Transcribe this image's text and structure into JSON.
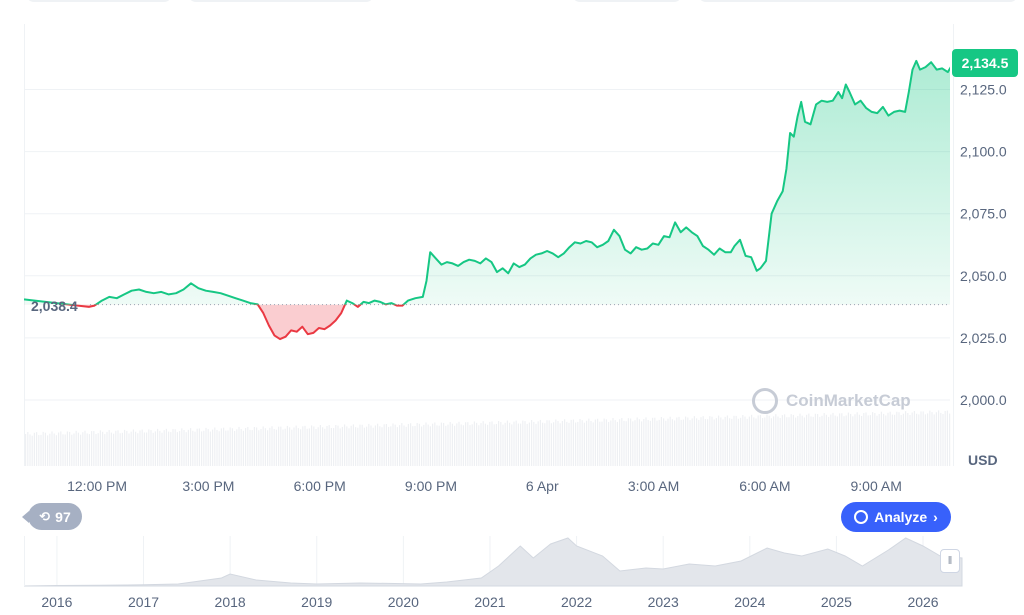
{
  "chart_data": {
    "type": "area",
    "title": "",
    "xlabel": "",
    "ylabel": "USD",
    "y_ticks": [
      2000.0,
      2025.0,
      2050.0,
      2075.0,
      2100.0,
      2125.0
    ],
    "y_tick_labels": [
      "2,000.0",
      "2,025.0",
      "2,050.0",
      "2,075.0",
      "2,100.0",
      "2,125.0"
    ],
    "ylim": [
      1974.0,
      2152.0
    ],
    "x_tick_labels": [
      "12:00 PM",
      "3:00 PM",
      "6:00 PM",
      "9:00 PM",
      "6 Apr",
      "3:00 AM",
      "6:00 AM",
      "9:00 AM"
    ],
    "x_ticks_hours": [
      1.97,
      4.97,
      7.97,
      10.97,
      13.97,
      16.97,
      19.97,
      22.97
    ],
    "xlim_hours": [
      0,
      25
    ],
    "open_price": 2038.4,
    "open_price_label": "2,038.4",
    "last_price": 2134.5,
    "last_price_label": "2,134.5",
    "series": [
      {
        "points": [
          [
            0.0,
            2040.5
          ],
          [
            1.75,
            2037.5
          ],
          [
            1.9,
            2038.0
          ],
          [
            2.1,
            2040.0
          ],
          [
            2.3,
            2041.5
          ],
          [
            2.5,
            2041.0
          ],
          [
            2.7,
            2042.5
          ],
          [
            2.9,
            2044.0
          ],
          [
            3.1,
            2044.5
          ],
          [
            3.3,
            2043.5
          ],
          [
            3.5,
            2043.0
          ],
          [
            3.7,
            2043.5
          ],
          [
            3.9,
            2042.5
          ],
          [
            4.1,
            2043.0
          ],
          [
            4.3,
            2044.5
          ],
          [
            4.5,
            2047.0
          ],
          [
            4.7,
            2045.0
          ],
          [
            4.9,
            2044.0
          ],
          [
            5.1,
            2043.5
          ],
          [
            5.3,
            2043.0
          ],
          [
            5.5,
            2042.0
          ],
          [
            5.7,
            2041.0
          ],
          [
            5.9,
            2040.0
          ],
          [
            6.1,
            2039.0
          ],
          [
            6.3,
            2038.5
          ],
          [
            6.45,
            2035.0
          ],
          [
            6.6,
            2030.0
          ],
          [
            6.75,
            2026.0
          ],
          [
            6.9,
            2024.5
          ],
          [
            7.05,
            2025.5
          ],
          [
            7.2,
            2028.0
          ],
          [
            7.35,
            2027.5
          ],
          [
            7.5,
            2029.5
          ],
          [
            7.65,
            2026.5
          ],
          [
            7.8,
            2027.0
          ],
          [
            7.95,
            2029.0
          ],
          [
            8.1,
            2028.5
          ],
          [
            8.25,
            2030.0
          ],
          [
            8.4,
            2032.0
          ],
          [
            8.55,
            2035.0
          ],
          [
            8.7,
            2040.0
          ],
          [
            8.85,
            2039.0
          ],
          [
            9.0,
            2037.5
          ],
          [
            9.15,
            2039.5
          ],
          [
            9.3,
            2039.0
          ],
          [
            9.45,
            2040.0
          ],
          [
            9.6,
            2039.5
          ],
          [
            9.75,
            2038.5
          ],
          [
            9.9,
            2039.0
          ],
          [
            10.05,
            2038.0
          ],
          [
            10.2,
            2038.0
          ],
          [
            10.35,
            2040.0
          ],
          [
            10.55,
            2041.0
          ],
          [
            10.75,
            2041.5
          ],
          [
            10.85,
            2048.0
          ],
          [
            10.95,
            2059.5
          ],
          [
            11.1,
            2057.0
          ],
          [
            11.25,
            2054.5
          ],
          [
            11.4,
            2055.5
          ],
          [
            11.55,
            2055.0
          ],
          [
            11.7,
            2054.0
          ],
          [
            11.85,
            2055.5
          ],
          [
            12.0,
            2056.5
          ],
          [
            12.15,
            2056.0
          ],
          [
            12.3,
            2055.0
          ],
          [
            12.45,
            2057.0
          ],
          [
            12.6,
            2055.5
          ],
          [
            12.75,
            2051.5
          ],
          [
            12.9,
            2053.0
          ],
          [
            13.05,
            2051.0
          ],
          [
            13.2,
            2055.0
          ],
          [
            13.35,
            2053.5
          ],
          [
            13.5,
            2054.5
          ],
          [
            13.65,
            2057.0
          ],
          [
            13.8,
            2058.5
          ],
          [
            13.95,
            2059.0
          ],
          [
            14.1,
            2060.0
          ],
          [
            14.25,
            2059.0
          ],
          [
            14.4,
            2057.5
          ],
          [
            14.55,
            2059.0
          ],
          [
            14.7,
            2061.5
          ],
          [
            14.85,
            2063.5
          ],
          [
            15.0,
            2063.0
          ],
          [
            15.15,
            2064.0
          ],
          [
            15.3,
            2063.5
          ],
          [
            15.45,
            2061.5
          ],
          [
            15.6,
            2062.5
          ],
          [
            15.75,
            2064.0
          ],
          [
            15.9,
            2068.5
          ],
          [
            16.05,
            2066.0
          ],
          [
            16.2,
            2060.5
          ],
          [
            16.35,
            2059.0
          ],
          [
            16.5,
            2061.5
          ],
          [
            16.65,
            2060.5
          ],
          [
            16.8,
            2061.0
          ],
          [
            16.95,
            2063.0
          ],
          [
            17.1,
            2062.5
          ],
          [
            17.25,
            2066.0
          ],
          [
            17.4,
            2065.5
          ],
          [
            17.55,
            2071.5
          ],
          [
            17.7,
            2067.5
          ],
          [
            17.85,
            2069.5
          ],
          [
            18.0,
            2067.5
          ],
          [
            18.15,
            2066.0
          ],
          [
            18.3,
            2062.0
          ],
          [
            18.45,
            2060.5
          ],
          [
            18.6,
            2058.5
          ],
          [
            18.75,
            2061.0
          ],
          [
            18.9,
            2059.5
          ],
          [
            19.05,
            2059.5
          ],
          [
            19.15,
            2062.0
          ],
          [
            19.3,
            2064.5
          ],
          [
            19.45,
            2058.0
          ],
          [
            19.6,
            2057.5
          ],
          [
            19.75,
            2052.0
          ],
          [
            19.85,
            2053.0
          ],
          [
            20.0,
            2056.0
          ],
          [
            20.15,
            2075.0
          ],
          [
            20.3,
            2080.0
          ],
          [
            20.45,
            2084.0
          ],
          [
            20.55,
            2093.0
          ],
          [
            20.65,
            2107.5
          ],
          [
            20.75,
            2106.0
          ],
          [
            20.85,
            2114.0
          ],
          [
            20.95,
            2120.0
          ],
          [
            21.05,
            2112.0
          ],
          [
            21.2,
            2111.0
          ],
          [
            21.35,
            2119.0
          ],
          [
            21.5,
            2120.5
          ],
          [
            21.65,
            2120.0
          ],
          [
            21.8,
            2120.5
          ],
          [
            21.95,
            2124.0
          ],
          [
            22.05,
            2121.5
          ],
          [
            22.15,
            2127.0
          ],
          [
            22.25,
            2124.0
          ],
          [
            22.4,
            2119.0
          ],
          [
            22.55,
            2120.5
          ],
          [
            22.7,
            2117.5
          ],
          [
            22.85,
            2116.0
          ],
          [
            23.0,
            2115.5
          ],
          [
            23.15,
            2118.0
          ],
          [
            23.3,
            2114.5
          ],
          [
            23.45,
            2116.0
          ],
          [
            23.6,
            2116.5
          ],
          [
            23.75,
            2116.0
          ],
          [
            23.85,
            2124.0
          ],
          [
            23.95,
            2133.0
          ],
          [
            24.05,
            2136.5
          ],
          [
            24.15,
            2133.0
          ],
          [
            24.3,
            2134.0
          ],
          [
            24.45,
            2136.0
          ],
          [
            24.6,
            2133.0
          ],
          [
            24.75,
            2133.5
          ],
          [
            24.9,
            2132.0
          ],
          [
            25.0,
            2134.5
          ],
          [
            25.2,
            2133.0
          ],
          [
            25.4,
            2129.0
          ],
          [
            25.55,
            2130.5
          ],
          [
            25.7,
            2128.5
          ],
          [
            25.85,
            2133.5
          ],
          [
            26.0,
            2132.0
          ],
          [
            26.15,
            2127.0
          ],
          [
            26.3,
            2132.0
          ],
          [
            26.45,
            2131.5
          ],
          [
            26.6,
            2133.0
          ],
          [
            26.75,
            2133.5
          ],
          [
            26.9,
            2132.0
          ],
          [
            27.05,
            2133.0
          ],
          [
            27.2,
            2131.5
          ],
          [
            27.35,
            2132.5
          ],
          [
            27.5,
            2131.0
          ],
          [
            27.65,
            2130.5
          ],
          [
            27.8,
            2132.5
          ],
          [
            27.95,
            2136.0
          ],
          [
            28.05,
            2131.0
          ],
          [
            28.2,
            2122.5
          ],
          [
            28.35,
            2123.0
          ],
          [
            28.5,
            2124.0
          ],
          [
            28.65,
            2126.0
          ],
          [
            28.8,
            2125.5
          ],
          [
            28.95,
            2130.0
          ],
          [
            29.1,
            2129.5
          ],
          [
            29.2,
            2125.0
          ],
          [
            29.35,
            2132.0
          ],
          [
            29.5,
            2133.0
          ],
          [
            29.6,
            2132.0
          ],
          [
            29.7,
            2135.0
          ],
          [
            29.85,
            2134.5
          ]
        ]
      }
    ],
    "volume_label": "",
    "navigator": {
      "x_tick_labels": [
        "2016",
        "2017",
        "2018",
        "2019",
        "2020",
        "2021",
        "2022",
        "2023",
        "2024",
        "2025",
        "2026"
      ],
      "x_ticks_year": [
        2016,
        2017,
        2018,
        2019,
        2020,
        2021,
        2022,
        2023,
        2024,
        2025,
        2026
      ],
      "xlim_year": [
        2015.62,
        2026.45
      ],
      "values": [
        [
          2015.62,
          0
        ],
        [
          2016.0,
          0.5
        ],
        [
          2016.5,
          0.8
        ],
        [
          2017.0,
          1.2
        ],
        [
          2017.4,
          2
        ],
        [
          2017.9,
          8
        ],
        [
          2018.0,
          12
        ],
        [
          2018.3,
          6
        ],
        [
          2018.7,
          3
        ],
        [
          2019.0,
          2
        ],
        [
          2019.5,
          3
        ],
        [
          2019.9,
          2.5
        ],
        [
          2020.2,
          2
        ],
        [
          2020.5,
          4
        ],
        [
          2020.9,
          8
        ],
        [
          2021.1,
          20
        ],
        [
          2021.35,
          40
        ],
        [
          2021.5,
          28
        ],
        [
          2021.7,
          42
        ],
        [
          2021.9,
          48
        ],
        [
          2022.0,
          40
        ],
        [
          2022.3,
          30
        ],
        [
          2022.5,
          15
        ],
        [
          2022.8,
          18
        ],
        [
          2023.0,
          17
        ],
        [
          2023.3,
          22
        ],
        [
          2023.6,
          20
        ],
        [
          2023.9,
          25
        ],
        [
          2024.2,
          38
        ],
        [
          2024.4,
          33
        ],
        [
          2024.6,
          30
        ],
        [
          2024.9,
          37
        ],
        [
          2025.1,
          30
        ],
        [
          2025.3,
          20
        ],
        [
          2025.6,
          36
        ],
        [
          2025.8,
          48
        ],
        [
          2026.0,
          40
        ],
        [
          2026.2,
          30
        ],
        [
          2026.45,
          28
        ]
      ]
    },
    "grid": true,
    "colors": {
      "up": "#16c784",
      "down": "#ea3943",
      "grid": "#eff2f5",
      "baseline": "#cfd6e4",
      "navigator": "#e3e6eb"
    }
  },
  "controls": {
    "history_count": "97",
    "analyze_label": "Analyze",
    "watermark": "CoinMarketCap",
    "currency_label": "USD"
  }
}
